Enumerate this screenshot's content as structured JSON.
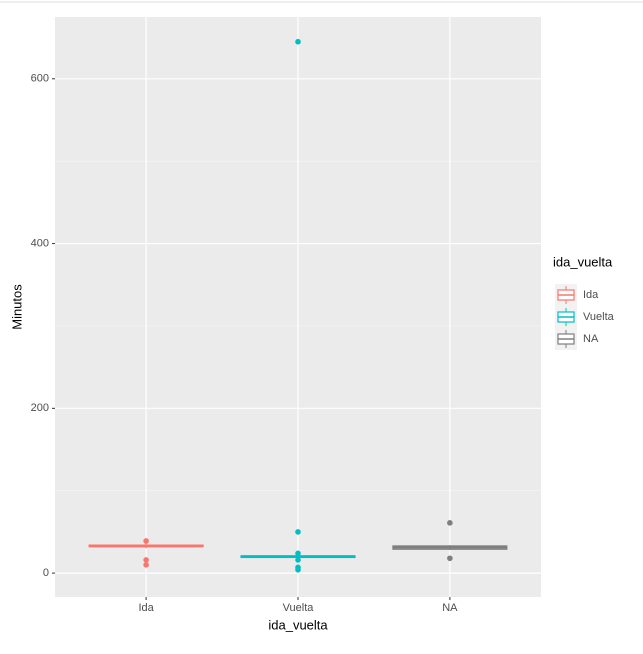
{
  "chart_data": {
    "type": "boxplot",
    "x_label": "ida_vuelta",
    "y_label": "Minutos",
    "legend_title": "ida_vuelta",
    "categories": [
      "Ida",
      "Vuelta",
      "NA"
    ],
    "series": [
      {
        "name": "Ida",
        "color": "#F8766D",
        "lower": 30,
        "q1": 32,
        "median": 33,
        "q3": 34,
        "upper": 36,
        "outliers": [
          39,
          16,
          10
        ]
      },
      {
        "name": "Vuelta",
        "color": "#00BFC4",
        "lower": 18,
        "q1": 19,
        "median": 20,
        "q3": 21,
        "upper": 22,
        "outliers": [
          645,
          50,
          24,
          16,
          7,
          4
        ]
      },
      {
        "name": "NA",
        "color": "#7F7F7F",
        "lower": 28,
        "q1": 29,
        "median": 31,
        "q3": 33,
        "upper": 34,
        "outliers": [
          61,
          18
        ]
      }
    ],
    "ylim": [
      -29,
      675
    ],
    "yticks": [
      0,
      200,
      400,
      600
    ],
    "minor_yticks": [
      100,
      300,
      500
    ],
    "grid": true,
    "legend": "right"
  }
}
